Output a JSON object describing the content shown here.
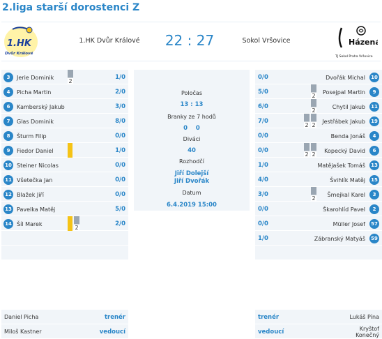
{
  "page_title": "2.liga starší dorostenci Z",
  "colors": {
    "accent": "#2a86c8",
    "row_bg": "#f1f5f9",
    "suspension": "#9aa6b2",
    "yellow_card": "#f5c316"
  },
  "match": {
    "home_team": "1.HK Dvůr Králové",
    "away_team": "Sokol Vršovice",
    "score_home": "22",
    "score_sep": ":",
    "score_away": "27",
    "home_logo_text": "1.HK",
    "home_logo_sub": "Dvůr Králové",
    "away_logo_text": "Házená",
    "away_logo_sub": "TJ Sokol Praha Vršovice",
    "halftime_label": "Poločas",
    "halftime_value": "13 : 13",
    "sevens_label": "Branky ze 7 hodů",
    "sevens_home": "0",
    "sevens_away": "0",
    "spectators_label": "Diváci",
    "spectators_value": "40",
    "referees_label": "Rozhodčí",
    "referees": [
      "Jiří Dolejší",
      "Jiří Dvořák"
    ],
    "date_label": "Datum",
    "date_value": "6.4.2019 15:00"
  },
  "home_players": [
    {
      "number": "3",
      "name": "Jerie Dominik",
      "goals": "1/0",
      "cards": [
        "s"
      ]
    },
    {
      "number": "4",
      "name": "Picha Martin",
      "goals": "2/0",
      "cards": []
    },
    {
      "number": "6",
      "name": "Kamberský Jakub",
      "goals": "3/0",
      "cards": []
    },
    {
      "number": "7",
      "name": "Glas Dominik",
      "goals": "8/0",
      "cards": []
    },
    {
      "number": "8",
      "name": "Šturm Filip",
      "goals": "0/0",
      "cards": []
    },
    {
      "number": "9",
      "name": "Fiedor Daniel",
      "goals": "1/0",
      "cards": [
        "y"
      ]
    },
    {
      "number": "10",
      "name": "Steiner Nicolas",
      "goals": "0/0",
      "cards": []
    },
    {
      "number": "11",
      "name": "Všetečka Jan",
      "goals": "0/0",
      "cards": []
    },
    {
      "number": "12",
      "name": "Blažek Jiří",
      "goals": "0/0",
      "cards": []
    },
    {
      "number": "13",
      "name": "Pavelka Matěj",
      "goals": "5/0",
      "cards": []
    },
    {
      "number": "14",
      "name": "Šíl Marek",
      "goals": "2/0",
      "cards": [
        "y",
        "s"
      ]
    }
  ],
  "away_players": [
    {
      "number": "10",
      "name": "Dvořák Michal",
      "goals": "0/0",
      "cards": []
    },
    {
      "number": "9",
      "name": "Posejpal Martin",
      "goals": "5/0",
      "cards": [
        "s"
      ]
    },
    {
      "number": "11",
      "name": "Chytil Jakub",
      "goals": "6/0",
      "cards": [
        "s"
      ]
    },
    {
      "number": "19",
      "name": "Jestřábek Jakub",
      "goals": "7/0",
      "cards": [
        "s",
        "s"
      ]
    },
    {
      "number": "4",
      "name": "Benda Jonáš",
      "goals": "0/0",
      "cards": []
    },
    {
      "number": "6",
      "name": "Kopecký David",
      "goals": "0/0",
      "cards": [
        "s",
        "s"
      ]
    },
    {
      "number": "13",
      "name": "Matějašek Tomáš",
      "goals": "1/0",
      "cards": []
    },
    {
      "number": "15",
      "name": "Švihlík Matěj",
      "goals": "4/0",
      "cards": []
    },
    {
      "number": "3",
      "name": "Šmejkal Karel",
      "goals": "3/0",
      "cards": [
        "s"
      ]
    },
    {
      "number": "2",
      "name": "Škarohlíd Pavel",
      "goals": "0/0",
      "cards": []
    },
    {
      "number": "57",
      "name": "Müller Josef",
      "goals": "0/0",
      "cards": []
    },
    {
      "number": "59",
      "name": "Zábranský Matyáš",
      "goals": "1/0",
      "cards": []
    }
  ],
  "suspension_label": "2",
  "home_staff": [
    {
      "name": "Daniel Picha",
      "role": "trenér"
    },
    {
      "name": "Miloš Kastner",
      "role": "vedoucí"
    }
  ],
  "away_staff": [
    {
      "name": "Lukáš Pína",
      "role": "trenér"
    },
    {
      "name": "Kryštof Konečný",
      "role": "vedoucí"
    }
  ]
}
